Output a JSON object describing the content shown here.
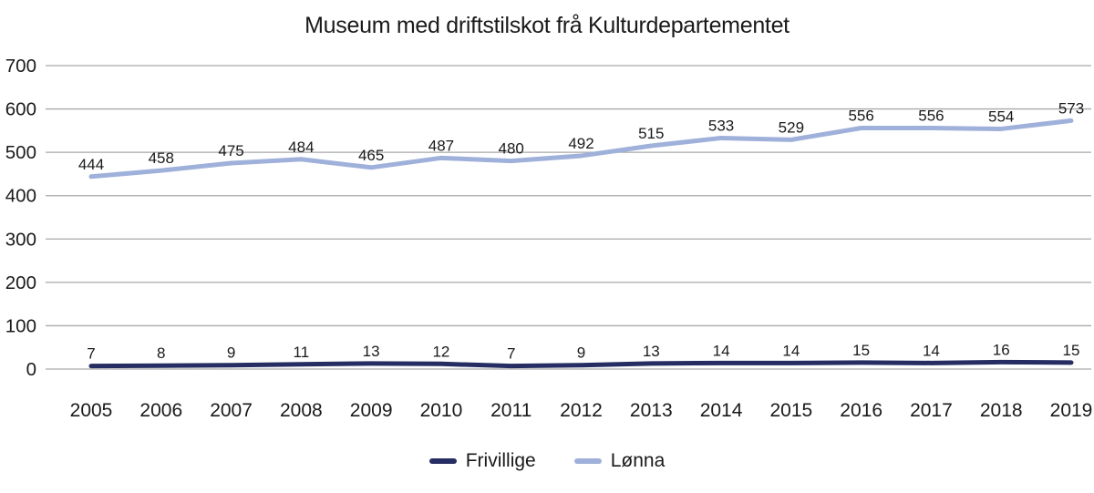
{
  "chart_data": {
    "type": "line",
    "title": "Museum med driftstilskot frå Kulturdepartementet",
    "categories": [
      "2005",
      "2006",
      "2007",
      "2008",
      "2009",
      "2010",
      "2011",
      "2012",
      "2013",
      "2014",
      "2015",
      "2016",
      "2017",
      "2018",
      "2019"
    ],
    "series": [
      {
        "name": "Frivillige",
        "color": "#262d62",
        "values": [
          7,
          8,
          9,
          11,
          13,
          12,
          7,
          9,
          13,
          14,
          14,
          15,
          14,
          16,
          15
        ]
      },
      {
        "name": "Lønna",
        "color": "#9fb1da",
        "values": [
          444,
          458,
          475,
          484,
          465,
          487,
          480,
          492,
          515,
          533,
          529,
          556,
          556,
          554,
          573
        ]
      }
    ],
    "xlabel": "",
    "ylabel": "",
    "ylim": [
      0,
      700
    ],
    "ytick_step": 100,
    "yticks": [
      0,
      100,
      200,
      300,
      400,
      500,
      600,
      700
    ],
    "grid": true,
    "gridline_color": "#a9a9a9",
    "label_color": "#1a1a1a",
    "legend_position": "bottom",
    "data_labels_shown": true
  }
}
